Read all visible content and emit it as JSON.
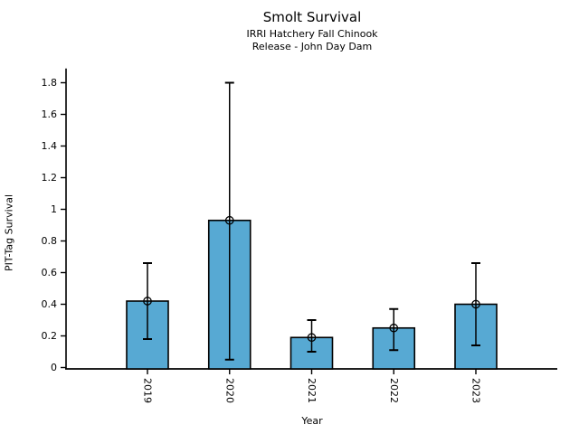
{
  "chart_data": {
    "type": "bar",
    "title": "Smolt Survival",
    "subtitle": [
      "IRRI Hatchery Fall Chinook",
      "Release - John Day Dam"
    ],
    "xlabel": "Year",
    "ylabel": "PIT-Tag Survival",
    "categories": [
      "2019",
      "2020",
      "2021",
      "2022",
      "2023"
    ],
    "values": [
      0.42,
      0.93,
      0.19,
      0.25,
      0.4
    ],
    "error_low": [
      0.18,
      0.05,
      0.1,
      0.11,
      0.14
    ],
    "error_high": [
      0.66,
      1.8,
      0.3,
      0.37,
      0.66
    ],
    "yticks": [
      0,
      0.2,
      0.4,
      0.6,
      0.8,
      1,
      1.2,
      1.4,
      1.6,
      1.8
    ],
    "ytick_labels": [
      "0",
      "0.2",
      "0.4",
      "0.6",
      "0.8",
      "1",
      "1.2",
      "1.4",
      "1.6",
      "1.8"
    ],
    "ylim": [
      0,
      1.89
    ],
    "grid": false,
    "legend": null,
    "bar_color": "#57A9D3",
    "bar_edge_color": "#000000",
    "error_color": "#000000",
    "marker": "open-circle",
    "x_tick_label_rotation": 90
  }
}
